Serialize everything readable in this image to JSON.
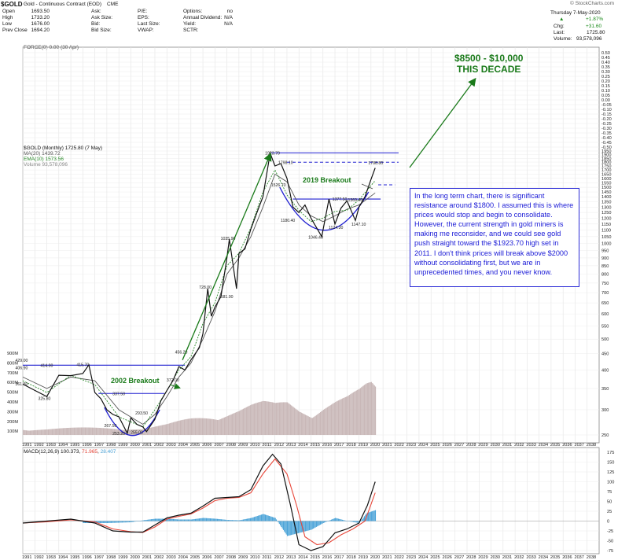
{
  "header": {
    "symbol_title": "$GOLD",
    "symbol_subtitle": "Gold - Continuous Contract (EOD)",
    "exchange": "CME",
    "watermark": "© StockCharts.com",
    "date": "Thursday 7-May-2020",
    "quote": [
      {
        "k": "Open",
        "v": "1693.50"
      },
      {
        "k": "High",
        "v": "1733.20"
      },
      {
        "k": "Low",
        "v": "1676.00"
      },
      {
        "k": "Prev Close",
        "v": "1694.20"
      }
    ],
    "quote2": [
      {
        "k": "Ask:"
      },
      {
        "k": "Ask Size:"
      },
      {
        "k": "Bid:"
      },
      {
        "k": "Bid Size:"
      }
    ],
    "quote3": [
      {
        "k": "P/E:"
      },
      {
        "k": "EPS:"
      },
      {
        "k": "Last Size:"
      },
      {
        "k": "VWAP:"
      }
    ],
    "quote4": [
      {
        "k": "Options:",
        "v": "no"
      },
      {
        "k": "Annual Dividend:",
        "v": "N/A"
      },
      {
        "k": "Yield:",
        "v": "N/A"
      },
      {
        "k": "SCTR:",
        "v": ""
      }
    ],
    "change_pct": "+1.87%",
    "chg_label": "Chg:",
    "chg": "+31.60",
    "last_label": "Last:",
    "last": "1725.80",
    "volume_label": "Volume:",
    "volume": "93,578,096",
    "force_label": "FORCE(0) 0.00 (30 Apr)"
  },
  "legend": {
    "title": "$GOLD (Monthly) 1725.80 (7 May)",
    "ma": "MA(20) 1439.72",
    "ema": "EMA(10) 1573.56",
    "vol": "Volume 93,578,096"
  },
  "annotations": {
    "target_line1": "$8500 - $10,000",
    "target_line2": "THIS DECADE",
    "breakout_2019": "2019 Breakout",
    "breakout_2002": "2002 Breakout",
    "callout": "In the long term chart, there is significant resistance around $1800. I assumed this is where prices would stop and begin to consolidate. However, the current strength in gold miners is making me reconsider, and we could see gold push straight toward the $1923.70 high set in 2011. I don't think prices will break above $2000 without consolidating first, but we are in unprecedented times, and you never know."
  },
  "macd_label": {
    "prefix": "MACD(12,26,9)",
    "macd": "100.373",
    "signal": "71.965",
    "hist": "28.407"
  },
  "colors": {
    "price": "#111111",
    "ma": "#555555",
    "ema": "#2a8a2a",
    "resistance": "#1f1fd0",
    "trend": "#1a7a1a",
    "volume": "#c9b8b8",
    "macd": "#111111",
    "signal": "#e8473a",
    "histogram": "#4aa3d8"
  },
  "chart_data": [
    {
      "type": "line",
      "title": "$GOLD (Monthly)",
      "yscale": "log",
      "ylim": [
        250,
        1950
      ],
      "x_ticks": [
        "1991",
        "1992",
        "1993",
        "1994",
        "1995",
        "1996",
        "1997",
        "1998",
        "1999",
        "2000",
        "2001",
        "2002",
        "2003",
        "2004",
        "2005",
        "2006",
        "2007",
        "2008",
        "2009",
        "2010",
        "2011",
        "2012",
        "2013",
        "2014",
        "2015",
        "2016",
        "2017",
        "2018",
        "2019",
        "2020",
        "2021",
        "2022",
        "2023",
        "2024",
        "2025",
        "2026",
        "2027",
        "2028",
        "2029",
        "2030",
        "2031",
        "2032",
        "2033",
        "2034",
        "2035",
        "2036",
        "2037",
        "2038"
      ],
      "y_ticks": [
        1950,
        1900,
        1850,
        1800,
        1750,
        1700,
        1650,
        1600,
        1550,
        1500,
        1450,
        1400,
        1350,
        1300,
        1250,
        1200,
        1150,
        1100,
        1050,
        1000,
        950,
        900,
        850,
        800,
        750,
        700,
        650,
        600,
        550,
        500,
        450,
        400,
        350,
        300,
        250
      ],
      "force_ticks": [
        "0.50",
        "0.45",
        "0.40",
        "0.35",
        "0.30",
        "0.25",
        "0.20",
        "0.15",
        "0.10",
        "0.05",
        "0.00",
        "-0.05",
        "-0.10",
        "-0.15",
        "-0.20",
        "-0.25",
        "-0.30",
        "-0.35",
        "-0.40",
        "-0.45",
        "-0.50"
      ],
      "volume_ticks": [
        "900M",
        "800M",
        "700M",
        "600M",
        "500M",
        "400M",
        "300M",
        "200M",
        "100M"
      ],
      "series": [
        {
          "name": "$GOLD",
          "x": [
            1991,
            1992,
            1993,
            1994,
            1995,
            1996,
            1996.5,
            1997,
            1997.5,
            1998,
            1998.5,
            1999,
            1999.7,
            2000,
            2000.5,
            2001,
            2001.3,
            2002,
            2002.5,
            2003,
            2003.5,
            2004,
            2004.5,
            2005,
            2005.7,
            2006,
            2006.4,
            2006.7,
            2007,
            2007.5,
            2008,
            2008.2,
            2008.8,
            2009,
            2009.5,
            2010,
            2010.5,
            2011,
            2011.6,
            2012,
            2012.5,
            2013,
            2013.5,
            2014,
            2014.5,
            2015,
            2015.9,
            2016,
            2016.5,
            2017,
            2017.5,
            2018,
            2018.7,
            2019,
            2019.5,
            2020,
            2020.35
          ],
          "y": [
            361,
            345,
            330,
            385,
            384,
            390,
            415,
            340,
            325,
            300,
            290,
            285,
            253,
            283,
            270,
            265,
            256,
            280,
            320,
            345,
            370,
            410,
            400,
            430,
            470,
            520,
            720,
            590,
            630,
            680,
            900,
            1030,
            720,
            930,
            960,
            1110,
            1250,
            1400,
            1920,
            1750,
            1780,
            1600,
            1300,
            1250,
            1320,
            1200,
            1050,
            1100,
            1377,
            1150,
            1290,
            1360,
            1180,
            1300,
            1400,
            1590,
            1725
          ]
        },
        {
          "name": "MA(20)",
          "x": [
            1991,
            1993,
            1995,
            1997,
            1999,
            2001,
            2002,
            2003,
            2004,
            2005,
            2006,
            2007,
            2008,
            2009,
            2010,
            2011,
            2012,
            2013,
            2014,
            2015,
            2016,
            2017,
            2018,
            2019,
            2020.35
          ],
          "y": [
            380,
            350,
            380,
            370,
            300,
            270,
            290,
            330,
            380,
            420,
            500,
            610,
            800,
            900,
            1050,
            1300,
            1650,
            1560,
            1320,
            1220,
            1170,
            1220,
            1280,
            1320,
            1440
          ]
        },
        {
          "name": "EMA(10)",
          "x": [
            1991,
            1993,
            1995,
            1997,
            1999,
            2001,
            2002,
            2003,
            2004,
            2005,
            2006,
            2007,
            2008,
            2009,
            2010,
            2011,
            2012,
            2013,
            2014,
            2015,
            2016,
            2017,
            2018,
            2019,
            2020.35
          ],
          "y": [
            370,
            340,
            385,
            360,
            285,
            265,
            300,
            345,
            400,
            440,
            560,
            650,
            850,
            930,
            1120,
            1450,
            1700,
            1420,
            1270,
            1170,
            1200,
            1260,
            1270,
            1370,
            1574
          ]
        }
      ],
      "labels": [
        {
          "text": "1923.70",
          "x": 2011.7,
          "y": 1923.7
        },
        {
          "text": "1798.10",
          "x": 2012.8,
          "y": 1798.1
        },
        {
          "text": "1788.80",
          "x": 2020.3,
          "y": 1788.8
        },
        {
          "text": "1526.70",
          "x": 2012.2,
          "y": 1526.7
        },
        {
          "text": "1377.50",
          "x": 2017.3,
          "y": 1377.5
        },
        {
          "text": "1369.40",
          "x": 2018.6,
          "y": 1369.4
        },
        {
          "text": "1180.40",
          "x": 2013.0,
          "y": 1180.4
        },
        {
          "text": "1124.30",
          "x": 2017.0,
          "y": 1124.3
        },
        {
          "text": "1147.10",
          "x": 2018.9,
          "y": 1147.1
        },
        {
          "text": "1046.40",
          "x": 2015.3,
          "y": 1046.4
        },
        {
          "text": "1035.90",
          "x": 2008.0,
          "y": 1035.9
        },
        {
          "text": "728.00",
          "x": 2006.2,
          "y": 728
        },
        {
          "text": "681.00",
          "x": 2008.0,
          "y": 681
        },
        {
          "text": "456.20",
          "x": 2004.2,
          "y": 456.2
        },
        {
          "text": "372.00",
          "x": 2003.5,
          "y": 372
        },
        {
          "text": "414.00",
          "x": 1993.0,
          "y": 414
        },
        {
          "text": "415.70",
          "x": 1996.0,
          "y": 415.7
        },
        {
          "text": "406.90",
          "x": 1990.9,
          "y": 406.9
        },
        {
          "text": "325.80",
          "x": 1992.8,
          "y": 325.8
        },
        {
          "text": "361.50",
          "x": 1990.9,
          "y": 361.5
        },
        {
          "text": "337.50",
          "x": 1999.0,
          "y": 337.5
        },
        {
          "text": "293.50",
          "x": 2000.9,
          "y": 293.5
        },
        {
          "text": "267.50",
          "x": 1998.3,
          "y": 267.5
        },
        {
          "text": "253.20",
          "x": 1999.0,
          "y": 253.2
        },
        {
          "text": "255.00",
          "x": 2000.5,
          "y": 255
        },
        {
          "text": "429.00",
          "x": 1990.9,
          "y": 429
        }
      ],
      "volume": {
        "x": [
          1991,
          1993,
          1995,
          1997,
          1999,
          2001,
          2003,
          2005,
          2007,
          2009,
          2010,
          2011,
          2012,
          2013,
          2014,
          2015,
          2016,
          2017,
          2018,
          2019,
          2019.6,
          2020,
          2020.35
        ],
        "values_m": [
          60,
          55,
          60,
          65,
          70,
          55,
          90,
          150,
          200,
          230,
          260,
          280,
          270,
          300,
          250,
          230,
          280,
          310,
          330,
          380,
          430,
          450,
          420
        ]
      },
      "grid": true
    },
    {
      "type": "line",
      "title": "MACD(12,26,9)",
      "y_ticks": [
        175,
        150,
        125,
        100,
        75,
        50,
        25,
        0,
        -25,
        -50,
        -75
      ],
      "series": [
        {
          "name": "MACD",
          "x": [
            1991,
            1993,
            1995,
            1997,
            1998.5,
            2000,
            2001,
            2002,
            2003,
            2004,
            2005,
            2006,
            2007,
            2008,
            2009,
            2010,
            2011,
            2011.8,
            2012.5,
            2013.3,
            2014,
            2015,
            2016,
            2017,
            2018,
            2019,
            2019.7,
            2020.35
          ],
          "y": [
            -5,
            0,
            5,
            -5,
            -25,
            -28,
            -28,
            -10,
            8,
            15,
            20,
            38,
            58,
            60,
            62,
            80,
            140,
            170,
            145,
            40,
            -60,
            -75,
            -65,
            -30,
            -20,
            -5,
            40,
            100
          ]
        },
        {
          "name": "Signal",
          "x": [
            1991,
            1993,
            1995,
            1997,
            1998.5,
            2000,
            2001,
            2002,
            2003,
            2004,
            2005,
            2006,
            2007,
            2008,
            2009,
            2010,
            2011,
            2012,
            2013,
            2013.8,
            2014.5,
            2015.5,
            2016.5,
            2017.5,
            2018.5,
            2019.5,
            2020.35
          ],
          "y": [
            -5,
            -2,
            3,
            -2,
            -20,
            -27,
            -29,
            -15,
            5,
            12,
            18,
            33,
            52,
            58,
            60,
            72,
            120,
            158,
            120,
            40,
            -40,
            -60,
            -55,
            -35,
            -20,
            0,
            72
          ]
        }
      ],
      "histogram": {
        "name": "Histogram",
        "x": [
          1998,
          1999,
          2000,
          2001,
          2002,
          2003,
          2004,
          2005,
          2006,
          2007,
          2008,
          2009,
          2010,
          2011,
          2012,
          2013,
          2014,
          2015,
          2016,
          2017,
          2018,
          2019,
          2019.6,
          2020.35
        ],
        "values": [
          -5,
          -4,
          -3,
          2,
          6,
          6,
          4,
          4,
          8,
          6,
          3,
          2,
          8,
          18,
          8,
          -38,
          -30,
          -22,
          -5,
          8,
          0,
          -5,
          20,
          28
        ]
      },
      "grid": true
    }
  ]
}
